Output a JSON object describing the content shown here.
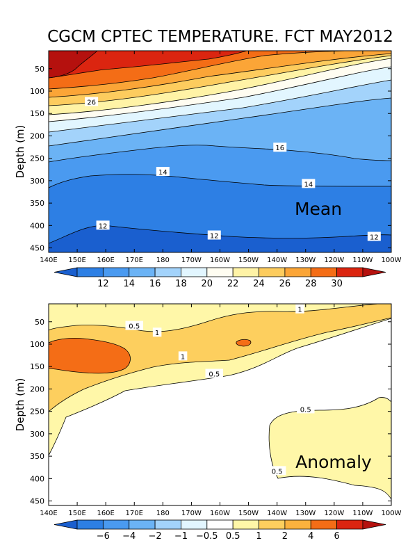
{
  "title": "CGCM CPTEC TEMPERATURE. FCT MAY2012",
  "chart_data": [
    {
      "type": "heatmap",
      "name": "Mean",
      "panel_label": "Mean",
      "ylabel": "Depth (m)",
      "x_ticks": [
        "140E",
        "150E",
        "160E",
        "170E",
        "180",
        "170W",
        "160W",
        "150W",
        "140W",
        "130W",
        "120W",
        "110W",
        "100W"
      ],
      "y_ticks": [
        "50",
        "100",
        "150",
        "200",
        "250",
        "300",
        "350",
        "400",
        "450"
      ],
      "y_tick_values": [
        50,
        100,
        150,
        200,
        250,
        300,
        350,
        400,
        450
      ],
      "ylim": [
        460,
        10
      ],
      "x_range": [
        "140E",
        "100W"
      ],
      "contour_labels": [
        {
          "text": "26",
          "lon": 155,
          "depth": 124
        },
        {
          "text": "16",
          "lon": 221,
          "depth": 226
        },
        {
          "text": "14",
          "lon": 180,
          "depth": 280
        },
        {
          "text": "14",
          "lon": 231,
          "depth": 307
        },
        {
          "text": "12",
          "lon": 159,
          "depth": 400
        },
        {
          "text": "12",
          "lon": 198,
          "depth": 422
        },
        {
          "text": "12",
          "lon": 254,
          "depth": 425
        }
      ],
      "colorbar": {
        "labels": [
          "12",
          "14",
          "16",
          "18",
          "20",
          "22",
          "24",
          "26",
          "28",
          "30"
        ],
        "colors": [
          "#1a5fcf",
          "#2d7fe4",
          "#4a9af0",
          "#6bb3f5",
          "#a3d3fb",
          "#e2f6ff",
          "#fffdf1",
          "#fff3a6",
          "#fdcc5e",
          "#fba537",
          "#f46d16",
          "#db2510",
          "#b5110e"
        ]
      }
    },
    {
      "type": "heatmap",
      "name": "Anomaly",
      "panel_label": "Anomaly",
      "ylabel": "Depth (m)",
      "x_ticks": [
        "140E",
        "150E",
        "160E",
        "170E",
        "180",
        "170W",
        "160W",
        "150W",
        "140W",
        "130W",
        "120W",
        "110W",
        "100W"
      ],
      "y_ticks": [
        "50",
        "100",
        "150",
        "200",
        "250",
        "300",
        "350",
        "400",
        "450"
      ],
      "y_tick_values": [
        50,
        100,
        150,
        200,
        250,
        300,
        350,
        400,
        450
      ],
      "ylim": [
        460,
        10
      ],
      "x_range": [
        "140E",
        "100W"
      ],
      "contour_labels": [
        {
          "text": "1",
          "lon": 228,
          "depth": 22
        },
        {
          "text": "0.5",
          "lon": 170,
          "depth": 59
        },
        {
          "text": "1",
          "lon": 178,
          "depth": 74
        },
        {
          "text": "1",
          "lon": 187,
          "depth": 127
        },
        {
          "text": "0.5",
          "lon": 198,
          "depth": 166
        },
        {
          "text": "0.5",
          "lon": 230,
          "depth": 245
        },
        {
          "text": "0.5",
          "lon": 220,
          "depth": 383
        }
      ],
      "colorbar": {
        "labels": [
          "−6",
          "−4",
          "−2",
          "−1",
          "−0.5",
          "0.5",
          "1",
          "2",
          "4",
          "6"
        ],
        "colors": [
          "#1a5fcf",
          "#2d7fe4",
          "#4a9af0",
          "#6bb3f5",
          "#a3d3fb",
          "#e2f6ff",
          "#ffffff",
          "#fff7a8",
          "#fdcf5e",
          "#fbb23e",
          "#f46d16",
          "#db2510",
          "#b5110e"
        ]
      }
    }
  ]
}
